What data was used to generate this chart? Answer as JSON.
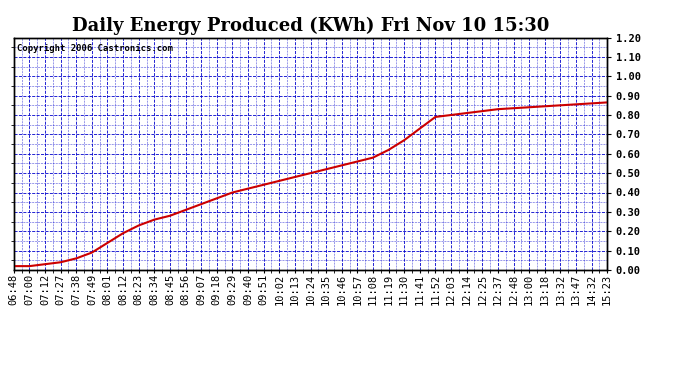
{
  "title": "Daily Energy Produced (KWh) Fri Nov 10 15:30",
  "copyright": "Copyright 2006 Castronics.com",
  "ylim": [
    0.0,
    1.2
  ],
  "yticks": [
    0.0,
    0.1,
    0.2,
    0.3,
    0.4,
    0.5,
    0.6,
    0.7,
    0.8,
    0.9,
    1.0,
    1.1,
    1.2
  ],
  "background_color": "#ffffff",
  "plot_bg_color": "#ffffff",
  "grid_color": "#0000cc",
  "line_color": "#cc0000",
  "title_fontsize": 13,
  "tick_fontsize": 7.5,
  "xtick_labels": [
    "06:48",
    "07:00",
    "07:12",
    "07:27",
    "07:38",
    "07:49",
    "08:01",
    "08:12",
    "08:23",
    "08:34",
    "08:45",
    "08:56",
    "09:07",
    "09:18",
    "09:29",
    "09:40",
    "09:51",
    "10:02",
    "10:13",
    "10:24",
    "10:35",
    "10:46",
    "10:57",
    "11:08",
    "11:19",
    "11:30",
    "11:41",
    "11:52",
    "12:03",
    "12:14",
    "12:25",
    "12:37",
    "12:48",
    "13:00",
    "13:18",
    "13:32",
    "13:47",
    "14:32",
    "15:23"
  ],
  "x_values": [
    0,
    1,
    2,
    3,
    4,
    5,
    6,
    7,
    8,
    9,
    10,
    11,
    12,
    13,
    14,
    15,
    16,
    17,
    18,
    19,
    20,
    21,
    22,
    23,
    24,
    25,
    26,
    27,
    28,
    29,
    30,
    31,
    32,
    33,
    34,
    35,
    36,
    37,
    38
  ],
  "y_values": [
    0.02,
    0.02,
    0.03,
    0.04,
    0.06,
    0.09,
    0.14,
    0.19,
    0.23,
    0.26,
    0.28,
    0.31,
    0.34,
    0.37,
    0.4,
    0.42,
    0.44,
    0.46,
    0.48,
    0.5,
    0.52,
    0.54,
    0.56,
    0.58,
    0.62,
    0.67,
    0.73,
    0.79,
    0.8,
    0.81,
    0.82,
    0.83,
    0.835,
    0.84,
    0.845,
    0.85,
    0.855,
    0.86,
    0.865
  ],
  "figsize": [
    6.9,
    3.75
  ],
  "dpi": 100
}
